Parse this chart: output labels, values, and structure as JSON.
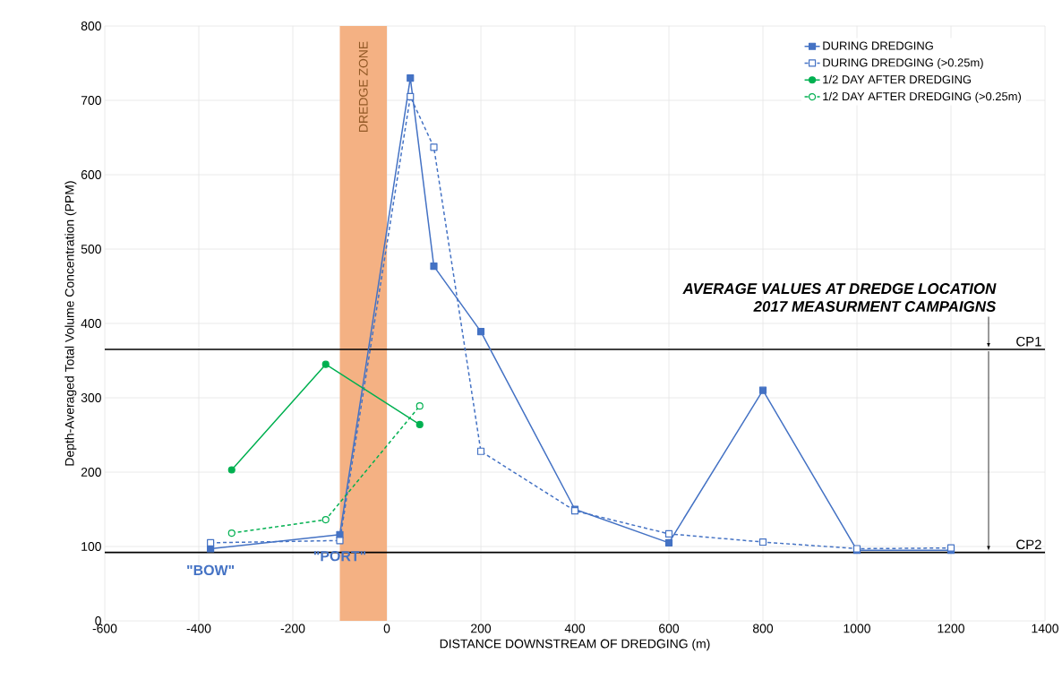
{
  "chart_data": {
    "type": "line",
    "xlabel": "DISTANCE DOWNSTREAM OF DREDGING (m)",
    "ylabel": "Depth-Averaged Total Volume Concentration (PPM)",
    "xlim": [
      -600,
      1400
    ],
    "xticks": [
      -600,
      -400,
      -200,
      0,
      200,
      400,
      600,
      800,
      1000,
      1200,
      1400
    ],
    "ylim": [
      0,
      800
    ],
    "yticks": [
      0,
      100,
      200,
      300,
      400,
      500,
      600,
      700,
      800
    ],
    "grid": true,
    "legend": "top right",
    "series": [
      {
        "name": "DURING DREDGING",
        "color": "#4472c4",
        "marker": "square",
        "line_style": "solid",
        "x": [
          -375,
          -100,
          50,
          100,
          200,
          400,
          600,
          800,
          1000,
          1200
        ],
        "values": [
          97,
          116,
          730,
          477,
          389,
          150,
          105,
          310,
          95,
          95
        ]
      },
      {
        "name": "DURING DREDGING (>0.25m)",
        "color": "#4472c4",
        "marker": "square",
        "line_style": "dashed",
        "x": [
          -375,
          -100,
          50,
          100,
          200,
          400,
          600,
          800,
          1000,
          1200
        ],
        "values": [
          105,
          108,
          705,
          637,
          228,
          148,
          117,
          106,
          97,
          98
        ]
      },
      {
        "name": "1/2 DAY AFTER DREDGING",
        "color": "#00b050",
        "marker": "circle",
        "line_style": "solid",
        "x": [
          -330,
          -130,
          70
        ],
        "values": [
          203,
          345,
          264
        ]
      },
      {
        "name": "1/2 DAY AFTER DREDGING (>0.25m)",
        "color": "#00b050",
        "marker": "circle",
        "line_style": "dashed",
        "x": [
          -330,
          -130,
          70
        ],
        "values": [
          118,
          136,
          289
        ]
      }
    ],
    "bands": [
      {
        "axis": "x",
        "from": -100,
        "to": 0,
        "label": "DREDGE ZONE",
        "color": "#f4b183"
      }
    ],
    "ref_lines": [
      {
        "axis": "y",
        "value": 365,
        "label": "CP1",
        "color": "#000000"
      },
      {
        "axis": "y",
        "value": 92,
        "label": "CP2",
        "color": "#000000"
      }
    ],
    "annotations": [
      {
        "text": "\"BOW\"",
        "x": -375,
        "y": 97
      },
      {
        "text": "\"PORT\"",
        "x": -100,
        "y": 116
      },
      "AVERAGE VALUES AT DREDGE LOCATION",
      "2017 MEASURMENT CAMPAIGNS"
    ]
  }
}
